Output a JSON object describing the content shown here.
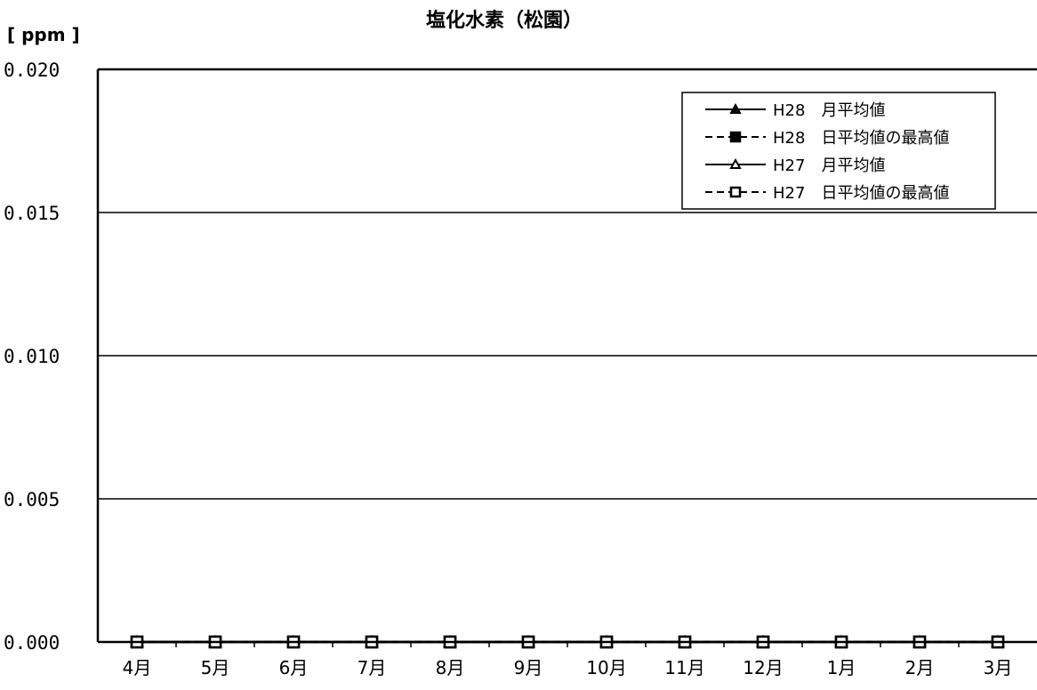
{
  "chart_data": {
    "type": "line",
    "title": "塩化水素（松園）",
    "ylabel": "[ ppm ]",
    "xlabel": "",
    "categories": [
      "4月",
      "5月",
      "6月",
      "7月",
      "8月",
      "9月",
      "10月",
      "11月",
      "12月",
      "1月",
      "2月",
      "3月"
    ],
    "ylim": [
      0,
      0.02
    ],
    "yticks": [
      "0.000",
      "0.005",
      "0.010",
      "0.015",
      "0.020"
    ],
    "grid": true,
    "legend_position": "top-right",
    "series": [
      {
        "name": "H28　月平均値",
        "marker": "triangle-filled",
        "line": "solid",
        "values": [
          0,
          0,
          0,
          0,
          0,
          0,
          0,
          0,
          0,
          0,
          0,
          0
        ]
      },
      {
        "name": "H28　日平均値の最高値",
        "marker": "square-filled",
        "line": "dashed",
        "values": [
          0,
          0,
          0,
          0,
          0,
          0,
          0,
          0,
          0,
          0,
          0,
          0
        ]
      },
      {
        "name": "H27　月平均値",
        "marker": "triangle-open",
        "line": "solid",
        "values": [
          0,
          0,
          0,
          0,
          0,
          0,
          0,
          0,
          0,
          0,
          0,
          0
        ]
      },
      {
        "name": "H27　日平均値の最高値",
        "marker": "square-open",
        "line": "dashed",
        "values": [
          0,
          0,
          0,
          0,
          0,
          0,
          0,
          0,
          0,
          0,
          0,
          0
        ]
      }
    ]
  }
}
